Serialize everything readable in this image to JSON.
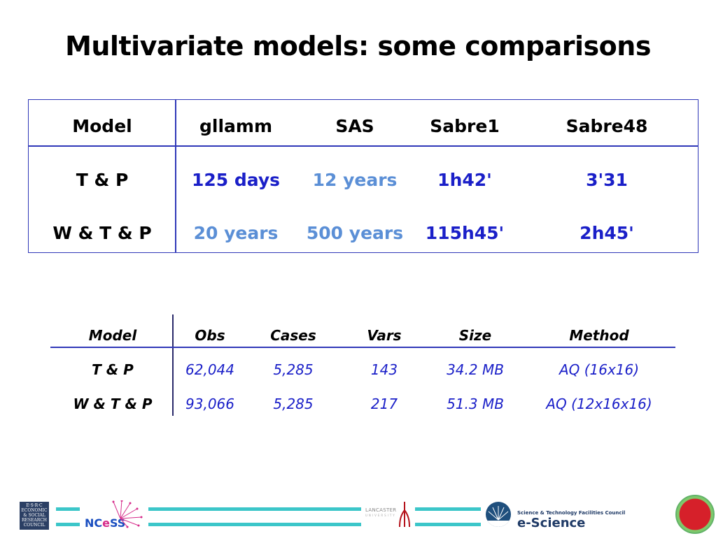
{
  "title": "Multivariate models: some comparisons",
  "table1": {
    "headers": [
      "Model",
      "gllamm",
      "SAS",
      "Sabre1",
      "Sabre48"
    ],
    "rows": [
      {
        "model": "T & P",
        "gllamm": "125 days",
        "sas": "12 years",
        "sabre1": "1h42'",
        "sabre48": "3'31"
      },
      {
        "model": "W & T & P",
        "gllamm": "20 years",
        "sas": "500 years",
        "sabre1": "115h45'",
        "sabre48": "2h45'"
      }
    ],
    "colors": {
      "dark_blue": "#1a1fc8",
      "light_blue": "#5b8fd6",
      "border": "#2f37b8"
    }
  },
  "table2": {
    "headers": [
      "Model",
      "Obs",
      "Cases",
      "Vars",
      "Size",
      "Method"
    ],
    "rows": [
      {
        "model": "T & P",
        "obs": "62,044",
        "cases": "5,285",
        "vars": "143",
        "size": "34.2 MB",
        "method": "AQ (16x16)"
      },
      {
        "model": "W & T & P",
        "obs": "93,066",
        "cases": "5,285",
        "vars": "217",
        "size": "51.3 MB",
        "method": "AQ (12x16x16)"
      }
    ]
  },
  "footer": {
    "esrc_lines": [
      "E·S·R·C",
      "ECONOMIC",
      "& SOCIAL",
      "RESEARCH",
      "COUNCIL"
    ],
    "ncess_prefix": "NC",
    "ncess_e": "e",
    "ncess_suffix": "SS",
    "lancaster": "LANCASTER",
    "lancaster_sub": "UNIVERSITY",
    "stfc_line1": "Science & Technology Facilities Council",
    "stfc_line2": "e-Science",
    "accent_color": "#3cc6c9"
  }
}
